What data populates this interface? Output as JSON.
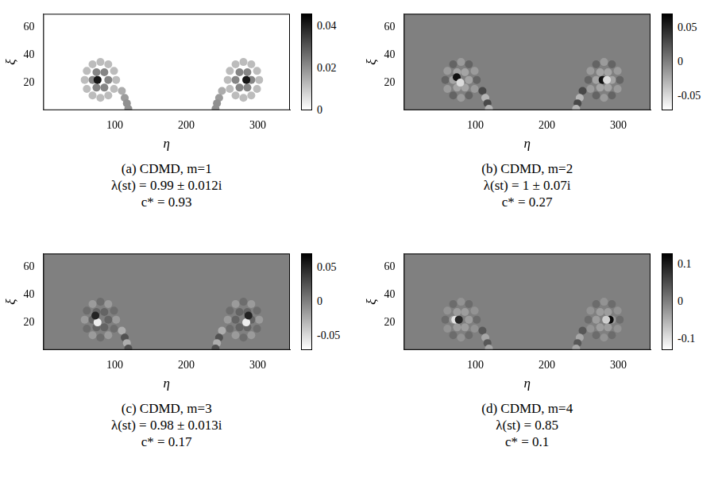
{
  "chart_data": [
    {
      "type": "heatmap",
      "title": "(a) CDMD, m=1",
      "annotations": [
        "λ(st) = 0.99 ± 0.012i",
        "c* = 0.93"
      ],
      "xlabel": "η",
      "ylabel": "ξ",
      "xlim": [
        0,
        345
      ],
      "xticks": [
        100,
        200,
        300
      ],
      "ylim": [
        0,
        70
      ],
      "yticks": [
        20,
        40,
        60
      ],
      "colorbar": {
        "range": [
          0,
          0.046
        ],
        "ticks": [
          0,
          0.02,
          0.04
        ]
      },
      "background": 0,
      "cells": [
        [
          102,
          22,
          0.012
        ],
        [
          99,
          28.5,
          0.012
        ],
        [
          91,
          33.3,
          0.012
        ],
        [
          80,
          35,
          0.012
        ],
        [
          69,
          33.3,
          0.012
        ],
        [
          61,
          28.5,
          0.012
        ],
        [
          58,
          22,
          0.012
        ],
        [
          61,
          15.5,
          0.012
        ],
        [
          69,
          10.7,
          0.012
        ],
        [
          80,
          9,
          0.012
        ],
        [
          91,
          10.7,
          0.012
        ],
        [
          99,
          15.5,
          0.012
        ],
        [
          91,
          22,
          0.022
        ],
        [
          85.5,
          27.6,
          0.022
        ],
        [
          74.5,
          27.6,
          0.022
        ],
        [
          69,
          22,
          0.022
        ],
        [
          74.5,
          16.4,
          0.022
        ],
        [
          85.5,
          16.4,
          0.022
        ],
        [
          76,
          22,
          0.042
        ],
        [
          110,
          14,
          0.015
        ],
        [
          114,
          9,
          0.018
        ],
        [
          117,
          5,
          0.02
        ],
        [
          119,
          1,
          0.02
        ],
        [
          258,
          22,
          0.012
        ],
        [
          261,
          28.5,
          0.012
        ],
        [
          269,
          33.3,
          0.012
        ],
        [
          280,
          35,
          0.012
        ],
        [
          291,
          33.3,
          0.012
        ],
        [
          299,
          28.5,
          0.012
        ],
        [
          302,
          22,
          0.012
        ],
        [
          299,
          15.5,
          0.012
        ],
        [
          291,
          10.7,
          0.012
        ],
        [
          280,
          9,
          0.012
        ],
        [
          269,
          10.7,
          0.012
        ],
        [
          261,
          15.5,
          0.012
        ],
        [
          269,
          22,
          0.022
        ],
        [
          274.5,
          27.6,
          0.022
        ],
        [
          285.5,
          27.6,
          0.022
        ],
        [
          291,
          22,
          0.022
        ],
        [
          285.5,
          16.4,
          0.022
        ],
        [
          274.5,
          16.4,
          0.022
        ],
        [
          284,
          22,
          0.042
        ],
        [
          250,
          14,
          0.015
        ],
        [
          246,
          9,
          0.018
        ],
        [
          243,
          5,
          0.02
        ],
        [
          241,
          1,
          0.02
        ]
      ]
    },
    {
      "type": "heatmap",
      "title": "(b) CDMD, m=2",
      "annotations": [
        "λ(st) = 1 ± 0.07i",
        "c* = 0.27"
      ],
      "xlabel": "η",
      "ylabel": "ξ",
      "xlim": [
        0,
        345
      ],
      "xticks": [
        100,
        200,
        300
      ],
      "ylim": [
        0,
        70
      ],
      "yticks": [
        20,
        40,
        60
      ],
      "colorbar": {
        "range": [
          -0.07,
          0.07
        ],
        "ticks": [
          -0.05,
          0,
          0.05
        ]
      },
      "background": 0,
      "cells": [
        [
          102,
          22,
          0.015
        ],
        [
          99,
          28.5,
          -0.015
        ],
        [
          91,
          33.3,
          0.015
        ],
        [
          80,
          35,
          -0.015
        ],
        [
          69,
          33.3,
          0.015
        ],
        [
          61,
          28.5,
          -0.015
        ],
        [
          58,
          22,
          0.015
        ],
        [
          61,
          15.5,
          -0.015
        ],
        [
          69,
          10.7,
          0.015
        ],
        [
          80,
          9,
          -0.015
        ],
        [
          91,
          10.7,
          0.015
        ],
        [
          99,
          15.5,
          -0.015
        ],
        [
          91,
          22,
          -0.02
        ],
        [
          85.5,
          27.6,
          -0.02
        ],
        [
          74.5,
          27.6,
          -0.02
        ],
        [
          69,
          22,
          -0.02
        ],
        [
          74.5,
          16.4,
          -0.02
        ],
        [
          85.5,
          16.4,
          -0.02
        ],
        [
          74,
          24,
          0.06
        ],
        [
          79,
          20,
          -0.05
        ],
        [
          110,
          14,
          0.03
        ],
        [
          114,
          9,
          -0.03
        ],
        [
          117,
          5,
          0.03
        ],
        [
          119,
          1,
          -0.03
        ],
        [
          258,
          22,
          0.015
        ],
        [
          261,
          28.5,
          -0.015
        ],
        [
          269,
          33.3,
          0.015
        ],
        [
          280,
          35,
          -0.015
        ],
        [
          291,
          33.3,
          0.015
        ],
        [
          299,
          28.5,
          -0.015
        ],
        [
          302,
          22,
          0.015
        ],
        [
          299,
          15.5,
          -0.015
        ],
        [
          291,
          10.7,
          0.015
        ],
        [
          280,
          9,
          -0.015
        ],
        [
          269,
          10.7,
          0.015
        ],
        [
          261,
          15.5,
          -0.015
        ],
        [
          269,
          22,
          -0.02
        ],
        [
          274.5,
          27.6,
          -0.02
        ],
        [
          285.5,
          27.6,
          -0.02
        ],
        [
          291,
          22,
          -0.02
        ],
        [
          285.5,
          16.4,
          -0.02
        ],
        [
          274.5,
          16.4,
          -0.02
        ],
        [
          278,
          22,
          0.06
        ],
        [
          284,
          22,
          -0.05
        ],
        [
          250,
          14,
          0.03
        ],
        [
          246,
          9,
          -0.03
        ],
        [
          243,
          5,
          0.03
        ],
        [
          241,
          1,
          -0.03
        ]
      ]
    },
    {
      "type": "heatmap",
      "title": "(c) CDMD, m=3",
      "annotations": [
        "λ(st) = 0.98 ± 0.013i",
        "c* = 0.17"
      ],
      "xlabel": "η",
      "ylabel": "ξ",
      "xlim": [
        0,
        345
      ],
      "xticks": [
        100,
        200,
        300
      ],
      "ylim": [
        0,
        70
      ],
      "yticks": [
        20,
        40,
        60
      ],
      "colorbar": {
        "range": [
          -0.07,
          0.07
        ],
        "ticks": [
          -0.05,
          0,
          0.05
        ]
      },
      "background": 0,
      "cells": [
        [
          102,
          22,
          -0.015
        ],
        [
          99,
          28.5,
          0.01
        ],
        [
          91,
          33.3,
          -0.015
        ],
        [
          80,
          35,
          0.01
        ],
        [
          69,
          33.3,
          -0.015
        ],
        [
          61,
          28.5,
          0.01
        ],
        [
          58,
          22,
          -0.015
        ],
        [
          61,
          15.5,
          0.01
        ],
        [
          69,
          10.7,
          -0.015
        ],
        [
          80,
          9,
          0.01
        ],
        [
          91,
          10.7,
          -0.015
        ],
        [
          99,
          15.5,
          0.01
        ],
        [
          91,
          22,
          0.015
        ],
        [
          85.5,
          27.6,
          0.015
        ],
        [
          74.5,
          27.6,
          0.015
        ],
        [
          69,
          22,
          0.015
        ],
        [
          74.5,
          16.4,
          0.015
        ],
        [
          85.5,
          16.4,
          0.015
        ],
        [
          76,
          20,
          -0.06
        ],
        [
          73,
          25,
          0.05
        ],
        [
          110,
          14,
          -0.025
        ],
        [
          114,
          9,
          0.025
        ],
        [
          117,
          5,
          -0.025
        ],
        [
          119,
          1,
          0.025
        ],
        [
          258,
          22,
          -0.015
        ],
        [
          261,
          28.5,
          0.01
        ],
        [
          269,
          33.3,
          -0.015
        ],
        [
          280,
          35,
          0.01
        ],
        [
          291,
          33.3,
          -0.015
        ],
        [
          299,
          28.5,
          0.01
        ],
        [
          302,
          22,
          -0.015
        ],
        [
          299,
          15.5,
          0.01
        ],
        [
          291,
          10.7,
          -0.015
        ],
        [
          280,
          9,
          0.01
        ],
        [
          269,
          10.7,
          -0.015
        ],
        [
          261,
          15.5,
          0.01
        ],
        [
          269,
          22,
          0.015
        ],
        [
          274.5,
          27.6,
          0.015
        ],
        [
          285.5,
          27.6,
          0.015
        ],
        [
          291,
          22,
          0.015
        ],
        [
          285.5,
          16.4,
          0.015
        ],
        [
          274.5,
          16.4,
          0.015
        ],
        [
          284,
          20,
          -0.06
        ],
        [
          287,
          25,
          0.05
        ],
        [
          250,
          14,
          -0.025
        ],
        [
          246,
          9,
          0.025
        ],
        [
          243,
          5,
          -0.025
        ],
        [
          241,
          1,
          0.025
        ]
      ]
    },
    {
      "type": "heatmap",
      "title": "(d) CDMD, m=4",
      "annotations": [
        "λ(st) = 0.85",
        "c* = 0.1"
      ],
      "xlabel": "η",
      "ylabel": "ξ",
      "xlim": [
        0,
        345
      ],
      "xticks": [
        100,
        200,
        300
      ],
      "ylim": [
        0,
        70
      ],
      "yticks": [
        20,
        40,
        60
      ],
      "colorbar": {
        "range": [
          -0.13,
          0.13
        ],
        "ticks": [
          -0.1,
          0,
          0.1
        ]
      },
      "background": 0,
      "cells": [
        [
          102,
          22,
          0.02
        ],
        [
          99,
          28.5,
          -0.02
        ],
        [
          91,
          33.3,
          0.02
        ],
        [
          80,
          35,
          -0.02
        ],
        [
          69,
          33.3,
          0.02
        ],
        [
          61,
          28.5,
          -0.02
        ],
        [
          58,
          22,
          0.02
        ],
        [
          61,
          15.5,
          -0.02
        ],
        [
          69,
          10.7,
          0.02
        ],
        [
          80,
          9,
          -0.02
        ],
        [
          91,
          10.7,
          0.02
        ],
        [
          99,
          15.5,
          -0.02
        ],
        [
          91,
          22,
          -0.03
        ],
        [
          85.5,
          27.6,
          -0.03
        ],
        [
          74.5,
          27.6,
          -0.03
        ],
        [
          69,
          22,
          -0.03
        ],
        [
          74.5,
          16.4,
          -0.03
        ],
        [
          85.5,
          16.4,
          -0.03
        ],
        [
          72,
          22,
          -0.1
        ],
        [
          77,
          22,
          0.09
        ],
        [
          110,
          14,
          0.04
        ],
        [
          114,
          9,
          -0.04
        ],
        [
          117,
          5,
          0.04
        ],
        [
          119,
          1,
          -0.04
        ],
        [
          258,
          22,
          0.02
        ],
        [
          261,
          28.5,
          -0.02
        ],
        [
          269,
          33.3,
          0.02
        ],
        [
          280,
          35,
          -0.02
        ],
        [
          291,
          33.3,
          0.02
        ],
        [
          299,
          28.5,
          -0.02
        ],
        [
          302,
          22,
          0.02
        ],
        [
          299,
          15.5,
          -0.02
        ],
        [
          291,
          10.7,
          0.02
        ],
        [
          280,
          9,
          -0.02
        ],
        [
          269,
          10.7,
          0.02
        ],
        [
          261,
          15.5,
          -0.02
        ],
        [
          269,
          22,
          -0.03
        ],
        [
          274.5,
          27.6,
          -0.03
        ],
        [
          285.5,
          27.6,
          -0.03
        ],
        [
          291,
          22,
          -0.03
        ],
        [
          285.5,
          16.4,
          -0.03
        ],
        [
          274.5,
          16.4,
          -0.03
        ],
        [
          288,
          22,
          0.12
        ],
        [
          283,
          22,
          -0.08
        ],
        [
          250,
          14,
          0.04
        ],
        [
          246,
          9,
          -0.04
        ],
        [
          243,
          5,
          0.04
        ],
        [
          241,
          1,
          -0.04
        ]
      ]
    }
  ]
}
